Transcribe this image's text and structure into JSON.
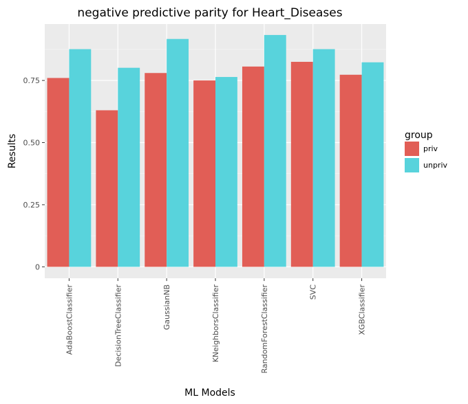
{
  "chart_data": {
    "type": "bar",
    "title": "negative predictive parity for Heart_Diseases",
    "xlabel": "ML Models",
    "ylabel": "Results",
    "categories": [
      "AdaBoostClassifier",
      "DecisionTreeClassifier",
      "GaussianNB",
      "KNeighborsClassifier",
      "RandomForestClassifier",
      "SVC",
      "XGBClassifier"
    ],
    "series": [
      {
        "name": "priv",
        "color": "#E15E56",
        "values": [
          0.76,
          0.63,
          0.78,
          0.75,
          0.806,
          0.825,
          0.773
        ]
      },
      {
        "name": "unpriv",
        "color": "#58D3DC",
        "values": [
          0.876,
          0.801,
          0.917,
          0.764,
          0.933,
          0.876,
          0.823
        ]
      }
    ],
    "yticks": [
      0,
      0.25,
      0.5,
      0.75
    ],
    "ytick_labels": [
      "0",
      "0.25",
      "0.50",
      "0.75"
    ],
    "ylim": [
      -0.046,
      0.977
    ],
    "grid": true,
    "legend": {
      "title": "group",
      "position": "right"
    }
  }
}
